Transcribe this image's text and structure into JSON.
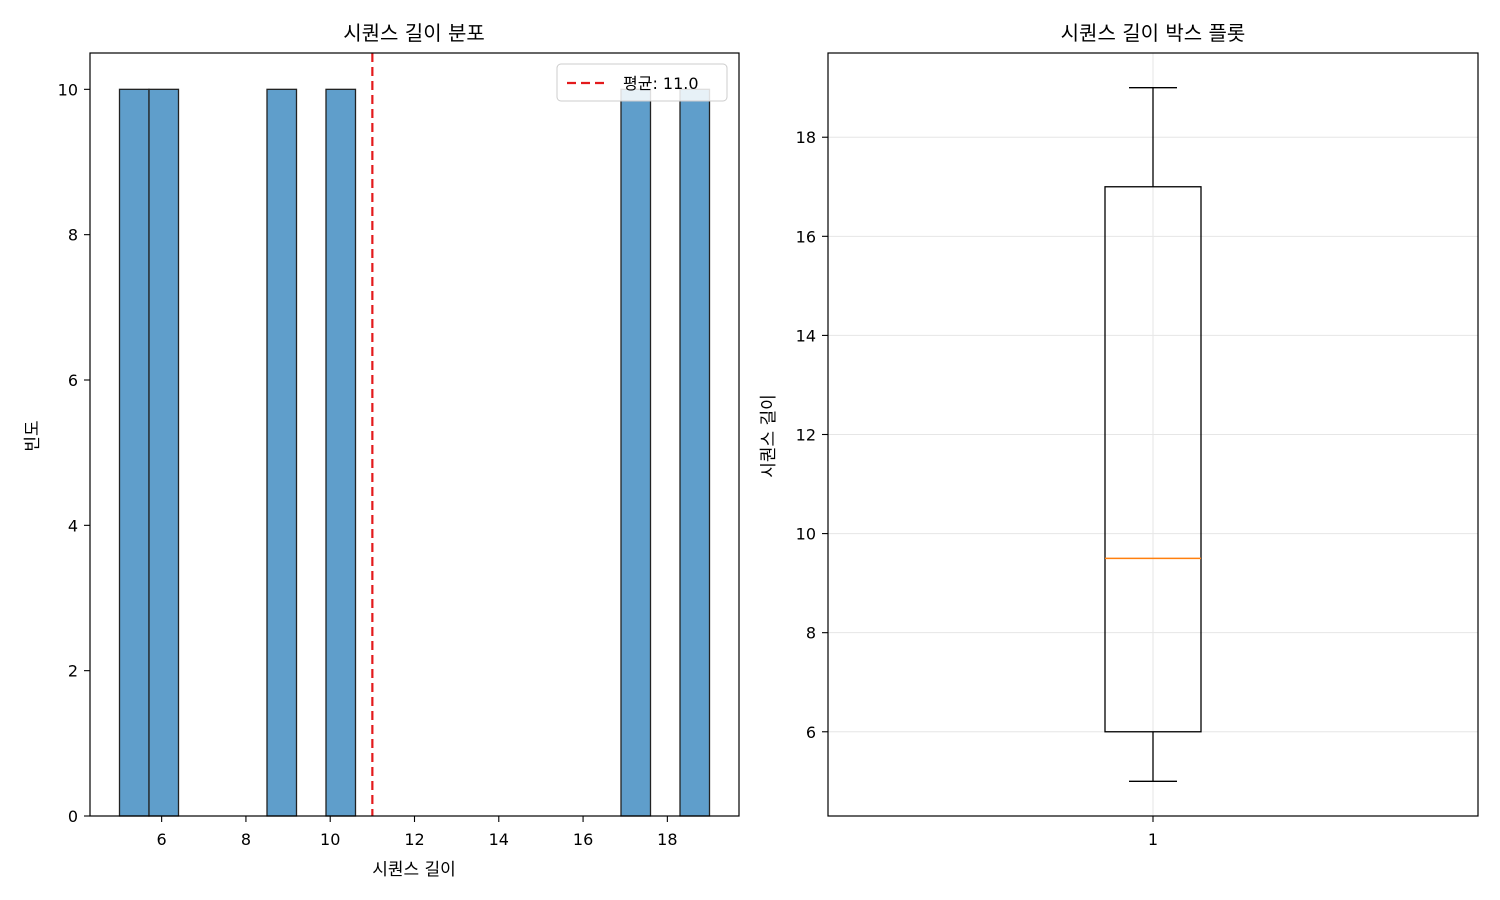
{
  "chart_data": [
    {
      "type": "bar",
      "subtype": "histogram",
      "title": "시퀀스 길이 분포",
      "xlabel": "시퀀스 길이",
      "ylabel": "빈도",
      "xlim": [
        4.3,
        19.7
      ],
      "ylim": [
        0,
        10.5
      ],
      "xticks": [
        6,
        8,
        10,
        12,
        14,
        16,
        18
      ],
      "yticks": [
        0,
        2,
        4,
        6,
        8,
        10
      ],
      "bins": [
        {
          "x0": 5.0,
          "x1": 5.7,
          "value": 10
        },
        {
          "x0": 5.7,
          "x1": 6.4,
          "value": 10
        },
        {
          "x0": 8.5,
          "x1": 9.2,
          "value": 10
        },
        {
          "x0": 9.9,
          "x1": 10.6,
          "value": 10
        },
        {
          "x0": 16.9,
          "x1": 17.6,
          "value": 10
        },
        {
          "x0": 18.3,
          "x1": 19.0,
          "value": 10
        }
      ],
      "mean_line": {
        "value": 11.0,
        "label": "평균: 11.0",
        "color": "#e31a1c"
      },
      "bar_color": "#5f9ecb",
      "legend_position": "upper-right",
      "grid": false
    },
    {
      "type": "box",
      "title": "시퀀스 길이 박스 플롯",
      "xlabel": "",
      "ylabel": "시퀀스 길이",
      "ylim": [
        4.3,
        19.7
      ],
      "yticks": [
        6,
        8,
        10,
        12,
        14,
        16,
        18
      ],
      "xtick_labels": [
        "1"
      ],
      "box": {
        "min": 5,
        "q1": 6,
        "median": 9.5,
        "q3": 17,
        "max": 19
      },
      "median_color": "#ff7f0e",
      "grid": true
    }
  ]
}
